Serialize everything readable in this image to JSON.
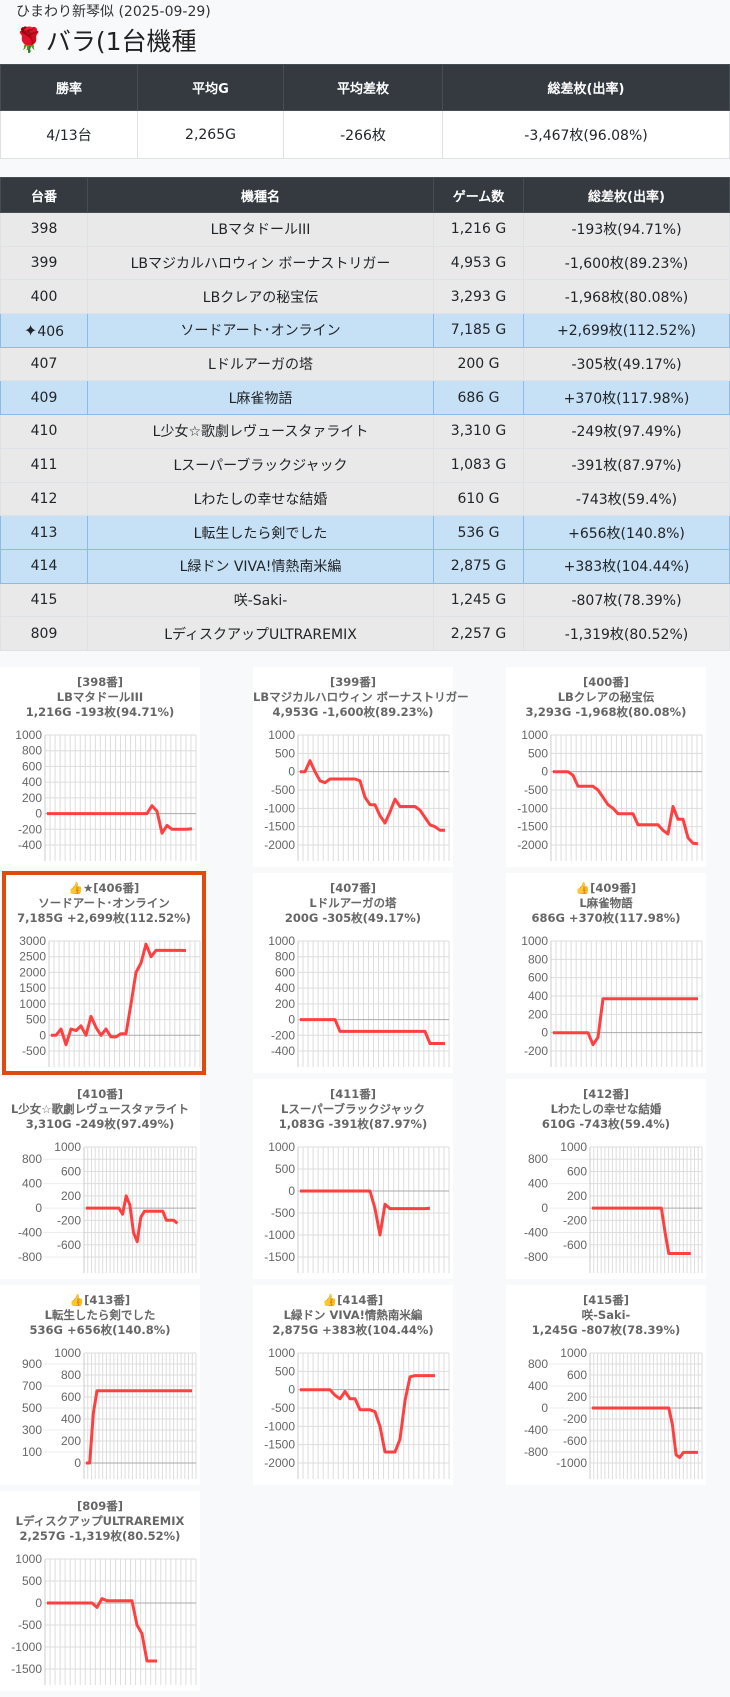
{
  "header": {
    "subtitle": "ひまわり新琴似 (2025-09-29)",
    "title_icon": "rose-icon",
    "title": "バラ(1台機種"
  },
  "summary": {
    "headers": [
      "勝率",
      "平均G",
      "平均差枚",
      "総差枚(出率)"
    ],
    "values": [
      "4/13台",
      "2,265G",
      "-266枚",
      "-3,467枚(96.08%)"
    ]
  },
  "machines": {
    "headers": [
      "台番",
      "機種名",
      "ゲーム数",
      "総差枚(出率)"
    ],
    "rows": [
      {
        "no": "398",
        "name": "LBマタドールIII",
        "games": "1,216 G",
        "diff": "-193枚(94.71%)",
        "hl": false
      },
      {
        "no": "399",
        "name": "LBマジカルハロウィン ボーナストリガー",
        "games": "4,953 G",
        "diff": "-1,600枚(89.23%)",
        "hl": false
      },
      {
        "no": "400",
        "name": "LBクレアの秘宝伝",
        "games": "3,293 G",
        "diff": "-1,968枚(80.08%)",
        "hl": false
      },
      {
        "no": "406",
        "name": "ソードアート･オンライン",
        "games": "7,185 G",
        "diff": "+2,699枚(112.52%)",
        "hl": true,
        "icon": "✦"
      },
      {
        "no": "407",
        "name": "Lドルアーガの塔",
        "games": "200 G",
        "diff": "-305枚(49.17%)",
        "hl": false
      },
      {
        "no": "409",
        "name": "L麻雀物語",
        "games": "686 G",
        "diff": "+370枚(117.98%)",
        "hl": true
      },
      {
        "no": "410",
        "name": "L少女☆歌劇レヴュースタァライト",
        "games": "3,310 G",
        "diff": "-249枚(97.49%)",
        "hl": false
      },
      {
        "no": "411",
        "name": "Lスーパーブラックジャック",
        "games": "1,083 G",
        "diff": "-391枚(87.97%)",
        "hl": false
      },
      {
        "no": "412",
        "name": "Lわたしの幸せな結婚",
        "games": "610 G",
        "diff": "-743枚(59.4%)",
        "hl": false
      },
      {
        "no": "413",
        "name": "L転生したら剣でした",
        "games": "536 G",
        "diff": "+656枚(140.8%)",
        "hl": true
      },
      {
        "no": "414",
        "name": "L緑ドン VIVA!情熱南米編",
        "games": "2,875 G",
        "diff": "+383枚(104.44%)",
        "hl": true
      },
      {
        "no": "415",
        "name": "咲-Saki-",
        "games": "1,245 G",
        "diff": "-807枚(78.39%)",
        "hl": false
      },
      {
        "no": "809",
        "name": "LディスクアップULTRAREMIX",
        "games": "2,257 G",
        "diff": "-1,319枚(80.52%)",
        "hl": false
      }
    ]
  },
  "line_color": "#ff4040",
  "chart_data": [
    {
      "type": "line",
      "head": "[398番]",
      "name": "LBマタドールIII",
      "stats": "1,216G -193枚(94.71%)",
      "ylim": [
        -400,
        1000
      ],
      "ticks": [
        1000,
        800,
        600,
        400,
        200,
        0,
        -200,
        -400
      ],
      "values": [
        0,
        0,
        0,
        0,
        0,
        0,
        0,
        0,
        0,
        0,
        0,
        0,
        0,
        0,
        0,
        0,
        0,
        0,
        0,
        0,
        0,
        100,
        30,
        -250,
        -150,
        -200,
        -200,
        -200,
        -200,
        -193
      ]
    },
    {
      "type": "line",
      "head": "[399番]",
      "name": "LBマジカルハロウィン ボーナストリガー",
      "stats": "4,953G -1,600枚(89.23%)",
      "ylim": [
        -2000,
        1000
      ],
      "ticks": [
        1000,
        500,
        0,
        -500,
        -1000,
        -1500,
        -2000
      ],
      "values": [
        0,
        0,
        300,
        0,
        -250,
        -300,
        -200,
        -200,
        -200,
        -200,
        -200,
        -200,
        -250,
        -700,
        -900,
        -900,
        -1200,
        -1400,
        -1100,
        -750,
        -950,
        -950,
        -950,
        -950,
        -1050,
        -1250,
        -1450,
        -1500,
        -1600,
        -1600
      ]
    },
    {
      "type": "line",
      "head": "[400番]",
      "name": "LBクレアの秘宝伝",
      "stats": "3,293G -1,968枚(80.08%)",
      "ylim": [
        -2000,
        1000
      ],
      "ticks": [
        1000,
        500,
        0,
        -500,
        -1000,
        -1500,
        -2000
      ],
      "values": [
        0,
        0,
        0,
        0,
        -100,
        -400,
        -400,
        -400,
        -400,
        -500,
        -700,
        -900,
        -1000,
        -1150,
        -1150,
        -1150,
        -1150,
        -1450,
        -1450,
        -1450,
        -1450,
        -1450,
        -1600,
        -1700,
        -950,
        -1300,
        -1300,
        -1800,
        -1950,
        -1968
      ]
    },
    {
      "type": "line",
      "head": "👍★[406番]",
      "name": "ソードアート･オンライン",
      "stats": "7,185G +2,699枚(112.52%)",
      "selected": true,
      "ylim": [
        -500,
        3000
      ],
      "ticks": [
        3000,
        2500,
        2000,
        1500,
        1000,
        500,
        0,
        -500
      ],
      "values": [
        0,
        0,
        200,
        -300,
        200,
        150,
        300,
        0,
        600,
        250,
        0,
        200,
        -50,
        -50,
        50,
        50,
        1000,
        2000,
        2300,
        2900,
        2500,
        2700,
        2700,
        2700,
        2700,
        2700,
        2700,
        2699
      ]
    },
    {
      "type": "line",
      "head": "[407番]",
      "name": "Lドルアーガの塔",
      "stats": "200G -305枚(49.17%)",
      "ylim": [
        -400,
        1000
      ],
      "ticks": [
        1000,
        800,
        600,
        400,
        200,
        0,
        -200,
        -400
      ],
      "values": [
        0,
        0,
        0,
        0,
        0,
        0,
        0,
        0,
        -150,
        -150,
        -150,
        -150,
        -150,
        -150,
        -150,
        -150,
        -150,
        -150,
        -150,
        -150,
        -150,
        -150,
        -150,
        -150,
        -150,
        -150,
        -305,
        -305,
        -305,
        -305
      ]
    },
    {
      "type": "line",
      "head": "👍[409番]",
      "name": "L麻雀物語",
      "stats": "686G +370枚(117.98%)",
      "ylim": [
        -200,
        1000
      ],
      "ticks": [
        1000,
        800,
        600,
        400,
        200,
        0,
        -200
      ],
      "values": [
        0,
        0,
        0,
        0,
        0,
        0,
        0,
        0,
        -130,
        -50,
        370,
        370,
        370,
        370,
        370,
        370,
        370,
        370,
        370,
        370,
        370,
        370,
        370,
        370,
        370,
        370,
        370,
        370,
        370,
        370
      ]
    },
    {
      "type": "line",
      "head": "[410番]",
      "name": "L少女☆歌劇レヴュースタァライト",
      "stats": "3,310G -249枚(97.49%)",
      "ylim": [
        -800,
        1000
      ],
      "ticks": [
        1000,
        800,
        600,
        400,
        200,
        0,
        -200,
        -400,
        -600,
        -800
      ],
      "values": [
        0,
        0,
        0,
        0,
        0,
        0,
        0,
        0,
        0,
        0,
        -100,
        200,
        50,
        -400,
        -550,
        -150,
        -50,
        -50,
        -50,
        -50,
        -50,
        -50,
        -200,
        -200,
        -200,
        -249
      ]
    },
    {
      "type": "line",
      "head": "[411番]",
      "name": "Lスーパーブラックジャック",
      "stats": "1,083G -391枚(87.97%)",
      "ylim": [
        -1500,
        1000
      ],
      "ticks": [
        1000,
        500,
        0,
        -500,
        -1000,
        -1500
      ],
      "values": [
        0,
        0,
        0,
        0,
        0,
        0,
        0,
        0,
        0,
        0,
        0,
        0,
        0,
        0,
        0,
        -400,
        -1000,
        -300,
        -400,
        -400,
        -400,
        -400,
        -400,
        -400,
        -400,
        -400,
        -391
      ]
    },
    {
      "type": "line",
      "head": "[412番]",
      "name": "Lわたしの幸せな結婚",
      "stats": "610G -743枚(59.4%)",
      "ylim": [
        -800,
        1000
      ],
      "ticks": [
        1000,
        800,
        600,
        400,
        200,
        0,
        -200,
        -400,
        -600,
        -800
      ],
      "values": [
        0,
        0,
        0,
        0,
        0,
        0,
        0,
        0,
        0,
        0,
        0,
        0,
        0,
        0,
        0,
        0,
        0,
        0,
        0,
        0,
        -400,
        -743,
        -743,
        -743,
        -743,
        -743,
        -743,
        -743
      ]
    },
    {
      "type": "line",
      "head": "👍[413番]",
      "name": "L転生したら剣でした",
      "stats": "536G +656枚(140.8%)",
      "ylim": [
        0,
        1000
      ],
      "ticks": [
        1000,
        900,
        800,
        700,
        600,
        500,
        400,
        300,
        200,
        100,
        0
      ],
      "values": [
        0,
        0,
        450,
        656,
        656,
        656,
        656,
        656,
        656,
        656,
        656,
        656,
        656,
        656,
        656,
        656,
        656,
        656,
        656,
        656,
        656,
        656,
        656,
        656,
        656,
        656,
        656,
        656,
        656,
        656
      ]
    },
    {
      "type": "line",
      "head": "👍[414番]",
      "name": "L緑ドン VIVA!情熱南米編",
      "stats": "2,875G +383枚(104.44%)",
      "ylim": [
        -2000,
        1000
      ],
      "ticks": [
        1000,
        500,
        0,
        -500,
        -1000,
        -1500,
        -2000
      ],
      "values": [
        0,
        0,
        0,
        0,
        0,
        0,
        0,
        -150,
        -250,
        -50,
        -250,
        -250,
        -550,
        -550,
        -550,
        -600,
        -1000,
        -1700,
        -1700,
        -1700,
        -1350,
        -300,
        350,
        383,
        383,
        383,
        383,
        383
      ]
    },
    {
      "type": "line",
      "head": "[415番]",
      "name": "咲-Saki-",
      "stats": "1,245G -807枚(78.39%)",
      "ylim": [
        -1000,
        1000
      ],
      "ticks": [
        1000,
        800,
        600,
        400,
        200,
        0,
        -200,
        -400,
        -600,
        -800,
        -1000
      ],
      "values": [
        0,
        0,
        0,
        0,
        0,
        0,
        0,
        0,
        0,
        0,
        0,
        0,
        0,
        0,
        0,
        0,
        0,
        0,
        0,
        0,
        0,
        0,
        -300,
        -850,
        -900,
        -807,
        -807,
        -807,
        -807,
        -807
      ]
    },
    {
      "type": "line",
      "head": "[809番]",
      "name": "LディスクアップULTRAREMIX",
      "stats": "2,257G -1,319枚(80.52%)",
      "ylim": [
        -1500,
        1000
      ],
      "ticks": [
        1000,
        500,
        0,
        -500,
        -1000,
        -1500
      ],
      "values": [
        0,
        0,
        0,
        0,
        0,
        0,
        0,
        0,
        0,
        0,
        -100,
        100,
        50,
        50,
        50,
        50,
        50,
        50,
        -500,
        -700,
        -1319,
        -1319,
        -1319
      ]
    }
  ]
}
